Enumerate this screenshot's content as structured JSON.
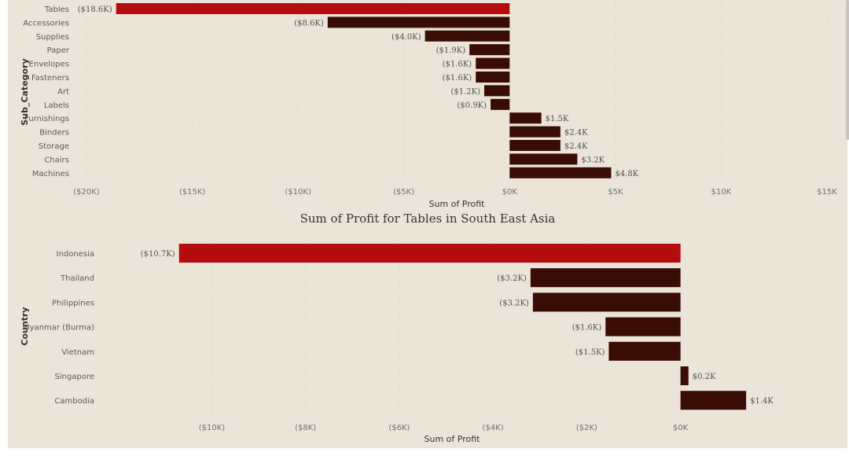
{
  "colors": {
    "background": "#ebe5d9",
    "bar_default": "#3a0c06",
    "bar_highlight": "#b50d0d"
  },
  "chart_data": [
    {
      "type": "bar",
      "orientation": "horizontal",
      "title": "",
      "xlabel": "Sum of Profit",
      "ylabel": "Sub_Category",
      "categories": [
        "Tables",
        "Accessories",
        "Supplies",
        "Paper",
        "Envelopes",
        "Fasteners",
        "Art",
        "Labels",
        "Furnishings",
        "Binders",
        "Storage",
        "Chairs",
        "Machines"
      ],
      "values": [
        -18600,
        -8600,
        -4000,
        -1900,
        -1600,
        -1600,
        -1200,
        -900,
        1500,
        2400,
        2400,
        3200,
        4800
      ],
      "data_labels": [
        "($18.6K)",
        "($8.6K)",
        "($4.0K)",
        "($1.9K)",
        "($1.6K)",
        "($1.6K)",
        "($1.2K)",
        "($0.9K)",
        "$1.5K",
        "$2.4K",
        "$2.4K",
        "$3.2K",
        "$4.8K"
      ],
      "highlight_index": 0,
      "xlim": [
        -20000,
        15000
      ],
      "xticks": [
        -20000,
        -15000,
        -10000,
        -5000,
        0,
        5000,
        10000,
        15000
      ],
      "xtick_labels": [
        "($20K)",
        "($15K)",
        "($10K)",
        "($5K)",
        "$0K",
        "$5K",
        "$10K",
        "$15K"
      ],
      "grid": true
    },
    {
      "type": "bar",
      "orientation": "horizontal",
      "title": "Sum of Profit for Tables in South East Asia",
      "xlabel": "Sum of Profit",
      "ylabel": "Country",
      "categories": [
        "Indonesia",
        "Thailand",
        "Philippines",
        "Myanmar (Burma)",
        "Vietnam",
        "Singapore",
        "Cambodia"
      ],
      "values": [
        -10700,
        -3200,
        -3150,
        -1600,
        -1530,
        170,
        1400
      ],
      "data_labels": [
        "($10.7K)",
        "($3.2K)",
        "($3.2K)",
        "($1.6K)",
        "($1.5K)",
        "$0.2K",
        "$1.4K"
      ],
      "highlight_index": 0,
      "xlim": [
        -11500,
        1750
      ],
      "xticks": [
        -10000,
        -8000,
        -6000,
        -4000,
        -2000,
        0
      ],
      "xtick_labels": [
        "($10K)",
        "($8K)",
        "($6K)",
        "($4K)",
        "($2K)",
        "$0K"
      ],
      "grid": true
    }
  ]
}
